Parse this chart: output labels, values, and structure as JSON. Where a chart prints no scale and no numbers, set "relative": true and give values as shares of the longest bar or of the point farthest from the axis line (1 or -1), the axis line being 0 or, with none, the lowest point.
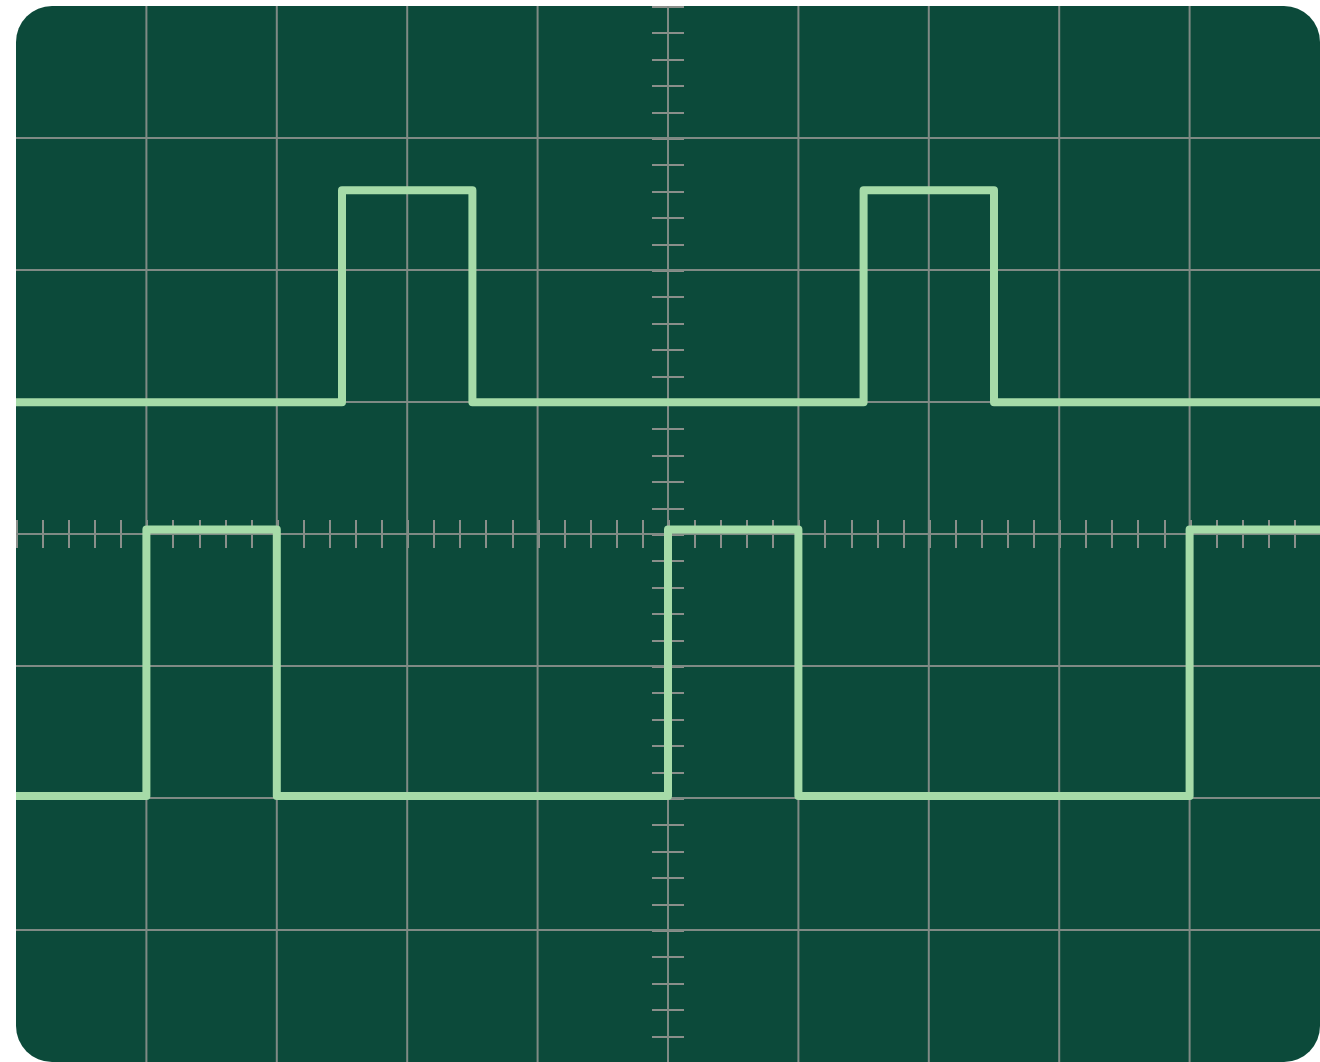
{
  "chart_data": {
    "type": "step",
    "relative": true,
    "grid": true,
    "line_style": "solid",
    "marker": "none",
    "categories": [
      null,
      null,
      null,
      null,
      null,
      null,
      null,
      null,
      null,
      null,
      null,
      null,
      null,
      null,
      null,
      null,
      null,
      null,
      null,
      null,
      null
    ],
    "series": [
      {
        "color": "#a6dba8",
        "values": [
          0.65,
          0.65,
          0.65,
          0.65,
          0.65,
          1,
          1,
          0.65,
          0.65,
          0.65,
          0.65,
          0.65,
          0.65,
          1,
          1,
          0.65,
          0.65,
          0.65,
          0.65,
          0.65,
          0.65
        ]
      },
      {
        "color": "#a6dba8",
        "values": [
          0,
          0,
          0.44,
          0.44,
          0,
          0,
          0,
          0,
          0,
          0,
          0.44,
          0.44,
          0,
          0,
          0,
          0,
          0,
          0,
          0.44,
          0.44,
          0.44
        ]
      }
    ]
  }
}
